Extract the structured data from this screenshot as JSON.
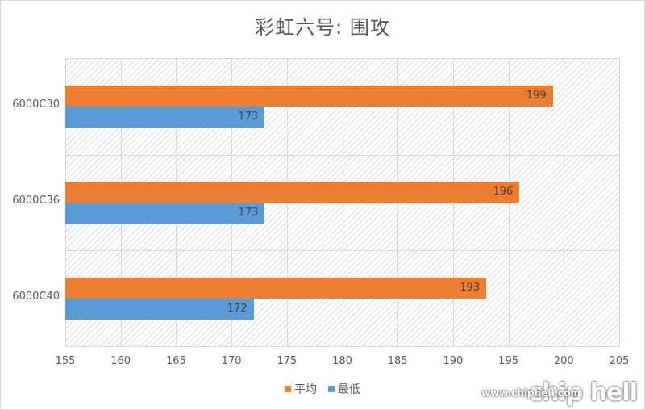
{
  "chart_data": {
    "type": "bar",
    "orientation": "horizontal",
    "title": "彩虹六号: 围攻",
    "categories": [
      "6000C30",
      "6000C36",
      "6000C40"
    ],
    "series": [
      {
        "name": "平均",
        "color": "#ED7D31",
        "values": [
          199,
          196,
          193
        ]
      },
      {
        "name": "最低",
        "color": "#5B9BD5",
        "values": [
          173,
          173,
          172
        ]
      }
    ],
    "xlabel": "",
    "ylabel": "",
    "xlim": [
      155,
      205
    ],
    "x_ticks": [
      "155",
      "160",
      "165",
      "170",
      "175",
      "180",
      "185",
      "190",
      "195",
      "200",
      "205"
    ],
    "grid": true,
    "legend_position": "bottom",
    "data_labels": true
  },
  "watermark": {
    "logo": "chip hell",
    "url": "www.chiphell.com"
  }
}
